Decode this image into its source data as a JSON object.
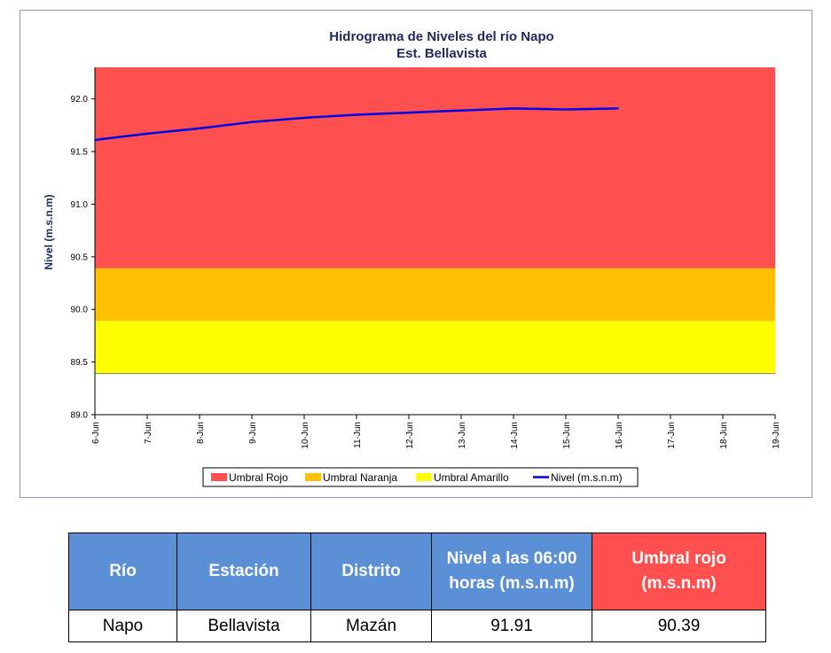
{
  "chart_data": {
    "type": "line",
    "title": "Hidrograma de Niveles del río Napo",
    "subtitle": "Est. Bellavista",
    "ylabel": "Nivel (m.s.n.m)",
    "xlabel": "",
    "ylim": [
      89.0,
      92.3
    ],
    "yticks": [
      "89.0",
      "89.5",
      "90.0",
      "90.5",
      "91.0",
      "91.5",
      "92.0"
    ],
    "categories": [
      "6-Jun",
      "7-Jun",
      "8-Jun",
      "9-Jun",
      "10-Jun",
      "11-Jun",
      "12-Jun",
      "13-Jun",
      "14-Jun",
      "15-Jun",
      "16-Jun",
      "17-Jun",
      "18-Jun",
      "19-Jun"
    ],
    "bands": [
      {
        "name": "Umbral Rojo",
        "from": 90.39,
        "to": 92.3,
        "color": "#ff5050"
      },
      {
        "name": "Umbral Naranja",
        "from": 89.89,
        "to": 90.39,
        "color": "#ffc000"
      },
      {
        "name": "Umbral Amarillo",
        "from": 89.39,
        "to": 89.89,
        "color": "#ffff00"
      }
    ],
    "series": [
      {
        "name": "Nivel (m.s.n.m)",
        "color": "#0000e6",
        "x": [
          0,
          1,
          2,
          3,
          4,
          5,
          6,
          7,
          8,
          9,
          10
        ],
        "values": [
          91.61,
          91.67,
          91.72,
          91.78,
          91.82,
          91.85,
          91.87,
          91.89,
          91.91,
          91.9,
          91.91
        ]
      }
    ],
    "legend": [
      "Umbral Rojo",
      "Umbral Naranja",
      "Umbral Amarillo",
      "Nivel (m.s.n.m)"
    ],
    "legend_position": "bottom",
    "grid": false
  },
  "table": {
    "headers": [
      "Río",
      "Estación",
      "Distrito",
      "Nivel a las 06:00 horas (m.s.n.m)",
      "Umbral rojo (m.s.n.m)"
    ],
    "row": [
      "Napo",
      "Bellavista",
      "Mazán",
      "91.91",
      "90.39"
    ]
  }
}
